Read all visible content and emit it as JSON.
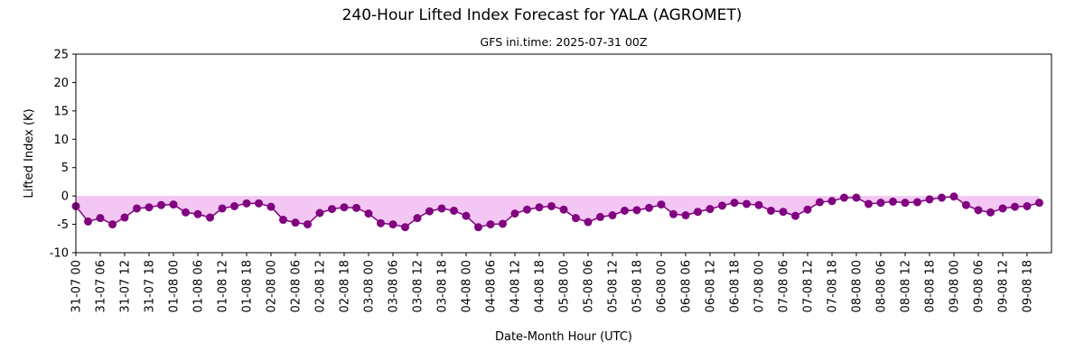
{
  "chart_data": {
    "type": "line",
    "title": "240-Hour Lifted Index Forecast for YALA (AGROMET)",
    "subtitle": "GFS ini.time: 2025-07-31 00Z",
    "xlabel": "Date-Month Hour (UTC)",
    "ylabel": "Lifted Index (K)",
    "ylim": [
      -10,
      25
    ],
    "yticks": [
      -10,
      -5,
      0,
      5,
      10,
      15,
      20,
      25
    ],
    "x_step_hours": 3,
    "x_tick_every_hours": 6,
    "xtick_labels": [
      "31-07 00",
      "31-07 06",
      "31-07 12",
      "31-07 18",
      "01-08 00",
      "01-08 06",
      "01-08 12",
      "01-08 18",
      "02-08 00",
      "02-08 06",
      "02-08 12",
      "02-08 18",
      "03-08 00",
      "03-08 06",
      "03-08 12",
      "03-08 18",
      "04-08 00",
      "04-08 06",
      "04-08 12",
      "04-08 18",
      "05-08 00",
      "05-08 06",
      "05-08 12",
      "05-08 18",
      "06-08 00",
      "06-08 06",
      "06-08 12",
      "06-08 18",
      "07-08 00",
      "07-08 06",
      "07-08 12",
      "07-08 18",
      "08-08 00",
      "08-08 06",
      "08-08 12",
      "08-08 18",
      "09-08 00",
      "09-08 06",
      "09-08 12",
      "09-08 18"
    ],
    "series": [
      {
        "color": "#800080",
        "fill_color": "#f3c6f3",
        "values": [
          -1.8,
          -4.5,
          -3.9,
          -5.0,
          -3.8,
          -2.2,
          -2.0,
          -1.6,
          -1.5,
          -2.9,
          -3.2,
          -3.8,
          -2.2,
          -1.8,
          -1.3,
          -1.3,
          -1.9,
          -4.2,
          -4.7,
          -5.0,
          -3.0,
          -2.3,
          -2.0,
          -2.1,
          -3.1,
          -4.8,
          -5.0,
          -5.5,
          -3.9,
          -2.7,
          -2.2,
          -2.6,
          -3.5,
          -5.5,
          -5.0,
          -4.9,
          -3.1,
          -2.4,
          -2.0,
          -1.8,
          -2.4,
          -3.9,
          -4.6,
          -3.7,
          -3.4,
          -2.6,
          -2.5,
          -2.1,
          -1.5,
          -3.2,
          -3.4,
          -2.8,
          -2.3,
          -1.7,
          -1.2,
          -1.4,
          -1.6,
          -2.6,
          -2.8,
          -3.5,
          -2.4,
          -1.1,
          -0.9,
          -0.3,
          -0.3,
          -1.4,
          -1.2,
          -1.0,
          -1.2,
          -1.1,
          -0.6,
          -0.3,
          -0.1,
          -1.6,
          -2.5,
          -2.9,
          -2.2,
          -1.9,
          -1.8,
          -1.2
        ]
      }
    ],
    "fill_below_zero": true,
    "grid": false,
    "legend": "none"
  }
}
